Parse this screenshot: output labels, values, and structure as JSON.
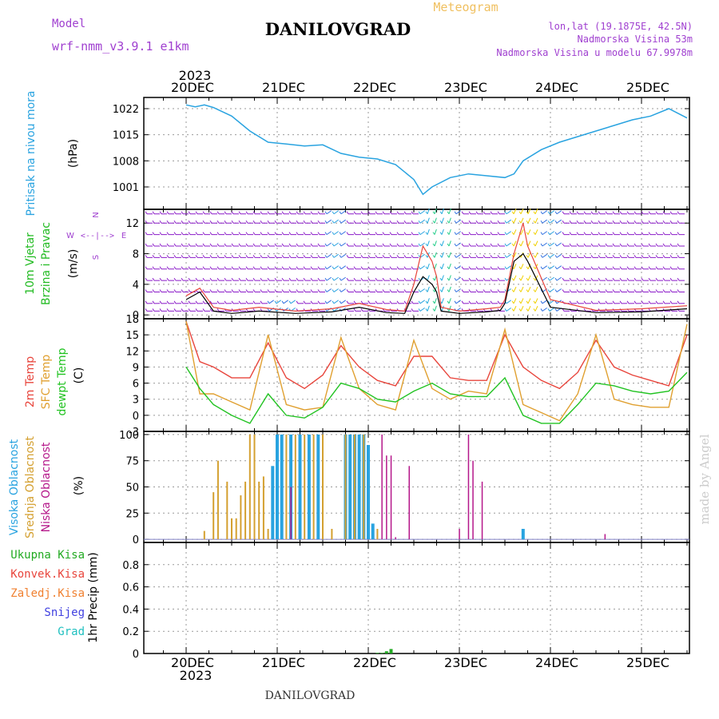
{
  "header": {
    "model_label": "Model",
    "model_name": "wrf-nmm_v3.9.1  e1km",
    "title": "DANILOVGRAD",
    "subtitle": "Meteogram",
    "coords": "lon,lat (19.1875E, 42.5N)",
    "elevation": "Nadmorska Visina 53m",
    "model_elevation": "Nadmorska Visina u modelu 67.9978m",
    "footer_title": "DANILOVGRAD",
    "watermark": "made by Angel"
  },
  "colors": {
    "pressure": "#29a3e0",
    "wind_line": "#e8453c",
    "wind_black": "#000000",
    "barb_purple": "#8a19c8",
    "temp2m": "#e8453c",
    "sfc": "#e0a030",
    "dewpt": "#22c322",
    "high_cloud": "#29a3e0",
    "mid_cloud": "#d4a030",
    "low_cloud": "#b5178a",
    "precip": "#22aa22",
    "conv": "#e8453c",
    "frozen": "#f08030",
    "snow": "#4040e0",
    "hail": "#20c0c0",
    "grid": "#999999"
  },
  "axes": {
    "top_year": "2023",
    "bottom_year": "2023",
    "dates": [
      "20DEC",
      "21DEC",
      "22DEC",
      "23DEC",
      "24DEC",
      "25DEC"
    ]
  },
  "chart_data": [
    {
      "type": "line",
      "name": "pressure",
      "ylabel_lines": [
        "Pritisak na nivou mora"
      ],
      "unit": "(hPa)",
      "ylim": [
        995,
        1025
      ],
      "yticks": [
        1001,
        1008,
        1015,
        1022
      ],
      "x": [
        0,
        0.1,
        0.2,
        0.3,
        0.5,
        0.7,
        0.9,
        1.1,
        1.3,
        1.5,
        1.7,
        1.9,
        2.1,
        2.3,
        2.5,
        2.6,
        2.7,
        2.9,
        3.1,
        3.3,
        3.5,
        3.6,
        3.7,
        3.9,
        4.1,
        4.3,
        4.5,
        4.7,
        4.9,
        5.1,
        5.3,
        5.5
      ],
      "series": [
        {
          "values": [
            1023,
            1022.5,
            1023,
            1022.3,
            1020,
            1016,
            1013,
            1012.5,
            1012,
            1012.3,
            1010,
            1009,
            1008.5,
            1007,
            1003,
            999,
            1001,
            1003.5,
            1004.5,
            1004,
            1003.5,
            1004.5,
            1008,
            1011,
            1013,
            1014.5,
            1016,
            1017.5,
            1019,
            1020,
            1022,
            1019.5
          ]
        }
      ]
    },
    {
      "type": "line",
      "name": "wind",
      "ylabel_lines": [
        "10m Vjetar",
        "Brzina i Pravac"
      ],
      "unit": "(m/s)",
      "ylim": [
        -0.5,
        13.8
      ],
      "yticks": [
        0,
        4,
        8,
        12
      ],
      "compass": {
        "n": "N",
        "w": "W",
        "e": "E",
        "s": "S",
        "arrows": "<--|-->"
      },
      "x": [
        0,
        0.15,
        0.3,
        0.5,
        0.8,
        1.2,
        1.6,
        1.9,
        2.2,
        2.4,
        2.5,
        2.6,
        2.7,
        2.75,
        2.8,
        3.0,
        3.3,
        3.45,
        3.5,
        3.6,
        3.7,
        3.75,
        4.0,
        4.5,
        5.0,
        5.5
      ],
      "series": [
        {
          "name": "speed",
          "values": [
            2.5,
            3.5,
            1,
            0.6,
            1,
            0.5,
            0.8,
            1.5,
            0.7,
            0.5,
            4,
            9,
            7,
            5,
            1,
            0.5,
            0.8,
            1,
            2,
            8,
            12,
            9,
            2,
            0.6,
            0.8,
            1.2
          ]
        },
        {
          "name": "gust",
          "values": [
            2,
            3,
            0.5,
            0.2,
            0.5,
            0.2,
            0.4,
            1,
            0.3,
            0.2,
            3,
            5,
            4,
            3,
            0.5,
            0.2,
            0.4,
            0.6,
            1.5,
            7,
            8,
            7,
            1,
            0.3,
            0.4,
            0.8
          ]
        }
      ]
    },
    {
      "type": "line",
      "name": "temperature",
      "ylabel_lines": [
        "2m Temp",
        "SFC Temp",
        "dewpt Temp"
      ],
      "unit": "(C)",
      "ylim": [
        -3,
        18
      ],
      "yticks": [
        -3,
        0,
        3,
        6,
        9,
        12,
        15,
        18
      ],
      "x": [
        0,
        0.15,
        0.3,
        0.5,
        0.7,
        0.9,
        1.1,
        1.3,
        1.5,
        1.7,
        1.9,
        2.1,
        2.3,
        2.5,
        2.7,
        2.9,
        3.1,
        3.3,
        3.5,
        3.7,
        3.9,
        4.1,
        4.3,
        4.5,
        4.7,
        4.9,
        5.1,
        5.3,
        5.5
      ],
      "series": [
        {
          "name": "2m",
          "values": [
            17.5,
            10,
            9,
            7,
            7,
            13.5,
            7,
            5,
            7.5,
            13,
            9,
            6.5,
            5.5,
            11,
            11,
            7,
            6.5,
            6.5,
            15,
            9,
            6.5,
            5,
            8,
            14,
            9,
            7.5,
            6.5,
            5.5,
            15
          ]
        },
        {
          "name": "sfc",
          "values": [
            17.5,
            4,
            4,
            2.5,
            1,
            15,
            2,
            1,
            1.5,
            14.5,
            5,
            2,
            1,
            14,
            5,
            3,
            4.5,
            4,
            16,
            2,
            0.5,
            -1,
            4,
            15,
            3,
            2,
            1.5,
            1.5,
            17
          ]
        },
        {
          "name": "dewpt",
          "values": [
            9,
            5,
            2,
            0,
            -1.5,
            4,
            0,
            -0.5,
            1.5,
            6,
            5,
            3,
            2.5,
            4.5,
            6,
            4,
            3.5,
            3.5,
            7,
            0,
            -1.5,
            -1.5,
            2,
            6,
            5.5,
            4.5,
            4,
            4.5,
            8
          ]
        }
      ]
    },
    {
      "type": "bar",
      "name": "clouds",
      "ylabel_lines": [
        "Visoka Oblacnost",
        "Srednja Oblacnost",
        "Niska Oblacnost"
      ],
      "unit": "(%)",
      "ylim": [
        -3,
        103
      ],
      "yticks": [
        0,
        25,
        50,
        75,
        100
      ],
      "series": [
        {
          "name": "high",
          "x": [
            0.95,
            1.0,
            1.05,
            1.15,
            1.25,
            1.35,
            1.45,
            1.75,
            1.8,
            1.85,
            1.9,
            1.95,
            2.0,
            2.05,
            3.7
          ],
          "values": [
            70,
            100,
            100,
            100,
            100,
            100,
            100,
            100,
            100,
            100,
            100,
            100,
            90,
            15,
            10
          ]
        },
        {
          "name": "mid",
          "x": [
            0.2,
            0.3,
            0.35,
            0.45,
            0.5,
            0.55,
            0.6,
            0.65,
            0.7,
            0.75,
            0.8,
            0.85,
            0.9,
            1.1,
            1.2,
            1.3,
            1.4,
            1.5,
            1.6,
            1.75,
            1.85,
            1.95,
            2.1
          ],
          "values": [
            8,
            45,
            75,
            55,
            20,
            20,
            42,
            55,
            100,
            100,
            55,
            60,
            10,
            100,
            100,
            100,
            100,
            100,
            10,
            100,
            100,
            100,
            10
          ]
        },
        {
          "name": "low",
          "x": [
            1.15,
            2.15,
            2.2,
            2.25,
            2.3,
            2.45,
            3.0,
            3.1,
            3.15,
            3.25,
            4.6
          ],
          "values": [
            50,
            100,
            80,
            80,
            2,
            70,
            10,
            100,
            75,
            55,
            5
          ]
        }
      ]
    },
    {
      "type": "bar",
      "name": "precip",
      "ylabel_lines": [
        "1hr Precip (mm)"
      ],
      "legend": [
        "Ukupna Kisa",
        "Konvek.Kisa",
        "Zaledj.Kisa",
        "Snijeg",
        "Grad"
      ],
      "ylim": [
        0,
        1.0
      ],
      "yticks": [
        0,
        0.2,
        0.4,
        0.6,
        0.8
      ],
      "series": [
        {
          "name": "total",
          "x": [
            2.1,
            2.15,
            2.2,
            2.25
          ],
          "values": [
            0.005,
            0.005,
            0.02,
            0.04
          ]
        }
      ]
    }
  ]
}
